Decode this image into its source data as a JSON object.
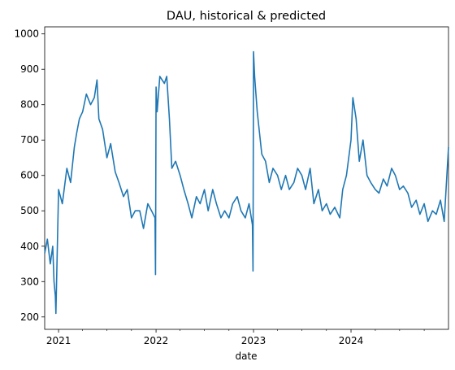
{
  "chart_data": {
    "type": "line",
    "title": "DAU, historical & predicted",
    "xlabel": "date",
    "ylabel": "",
    "xlim": [
      "2020-11-10",
      "2024-12-31"
    ],
    "ylim": [
      165,
      1020
    ],
    "x_ticks": [
      {
        "date": "2021-01-01",
        "label": "2021"
      },
      {
        "date": "2022-01-01",
        "label": "2022"
      },
      {
        "date": "2023-01-01",
        "label": "2023"
      },
      {
        "date": "2024-01-01",
        "label": "2024"
      }
    ],
    "y_ticks": [
      200,
      300,
      400,
      500,
      600,
      700,
      800,
      900,
      1000
    ],
    "grid": false,
    "legend": "none",
    "series": [
      {
        "color": "#1f77b4",
        "x": [
          "2020-11-10",
          "2020-11-20",
          "2020-12-01",
          "2020-12-10",
          "2020-12-15",
          "2020-12-20",
          "2020-12-22",
          "2021-01-01",
          "2021-01-15",
          "2021-02-01",
          "2021-02-15",
          "2021-03-01",
          "2021-03-10",
          "2021-03-20",
          "2021-04-01",
          "2021-04-15",
          "2021-05-01",
          "2021-05-15",
          "2021-05-25",
          "2021-06-01",
          "2021-06-15",
          "2021-07-01",
          "2021-07-15",
          "2021-08-01",
          "2021-08-15",
          "2021-09-01",
          "2021-09-15",
          "2021-10-01",
          "2021-10-15",
          "2021-11-01",
          "2021-11-15",
          "2021-12-01",
          "2021-12-15",
          "2021-12-28",
          "2021-12-30",
          "2022-01-01",
          "2022-01-05",
          "2022-01-15",
          "2022-02-01",
          "2022-02-10",
          "2022-02-20",
          "2022-03-01",
          "2022-03-15",
          "2022-04-01",
          "2022-04-15",
          "2022-05-01",
          "2022-05-15",
          "2022-06-01",
          "2022-06-15",
          "2022-07-01",
          "2022-07-15",
          "2022-08-01",
          "2022-08-15",
          "2022-09-01",
          "2022-09-15",
          "2022-10-01",
          "2022-10-15",
          "2022-11-01",
          "2022-11-15",
          "2022-12-01",
          "2022-12-15",
          "2022-12-28",
          "2022-12-30",
          "2023-01-01",
          "2023-01-05",
          "2023-01-15",
          "2023-02-01",
          "2023-02-15",
          "2023-03-01",
          "2023-03-15",
          "2023-04-01",
          "2023-04-15",
          "2023-05-01",
          "2023-05-15",
          "2023-06-01",
          "2023-06-15",
          "2023-07-01",
          "2023-07-15",
          "2023-08-01",
          "2023-08-15",
          "2023-09-01",
          "2023-09-15",
          "2023-10-01",
          "2023-10-15",
          "2023-11-01",
          "2023-11-20",
          "2023-12-01",
          "2023-12-15",
          "2024-01-01",
          "2024-01-08",
          "2024-01-20",
          "2024-02-01",
          "2024-02-15",
          "2024-03-01",
          "2024-03-15",
          "2024-04-01",
          "2024-04-15",
          "2024-05-01",
          "2024-05-15",
          "2024-06-01",
          "2024-06-15",
          "2024-07-01",
          "2024-07-15",
          "2024-08-01",
          "2024-08-15",
          "2024-09-01",
          "2024-09-15",
          "2024-10-01",
          "2024-10-15",
          "2024-11-01",
          "2024-11-15",
          "2024-12-01",
          "2024-12-15",
          "2024-12-31"
        ],
        "y": [
          380,
          420,
          350,
          400,
          300,
          260,
          210,
          560,
          520,
          620,
          580,
          680,
          720,
          760,
          780,
          830,
          800,
          820,
          870,
          760,
          730,
          650,
          690,
          610,
          580,
          540,
          560,
          480,
          500,
          500,
          450,
          520,
          500,
          480,
          320,
          850,
          780,
          880,
          860,
          880,
          760,
          620,
          640,
          600,
          560,
          520,
          480,
          540,
          520,
          560,
          500,
          560,
          520,
          480,
          500,
          480,
          520,
          540,
          500,
          480,
          520,
          460,
          330,
          950,
          880,
          780,
          660,
          640,
          580,
          620,
          600,
          560,
          600,
          560,
          580,
          620,
          600,
          560,
          620,
          520,
          560,
          500,
          520,
          490,
          510,
          480,
          560,
          600,
          700,
          820,
          760,
          640,
          700,
          600,
          580,
          560,
          550,
          590,
          570,
          620,
          600,
          560,
          570,
          550,
          510,
          530,
          490,
          520,
          470,
          500,
          490,
          530,
          470,
          680
        ]
      }
    ]
  }
}
